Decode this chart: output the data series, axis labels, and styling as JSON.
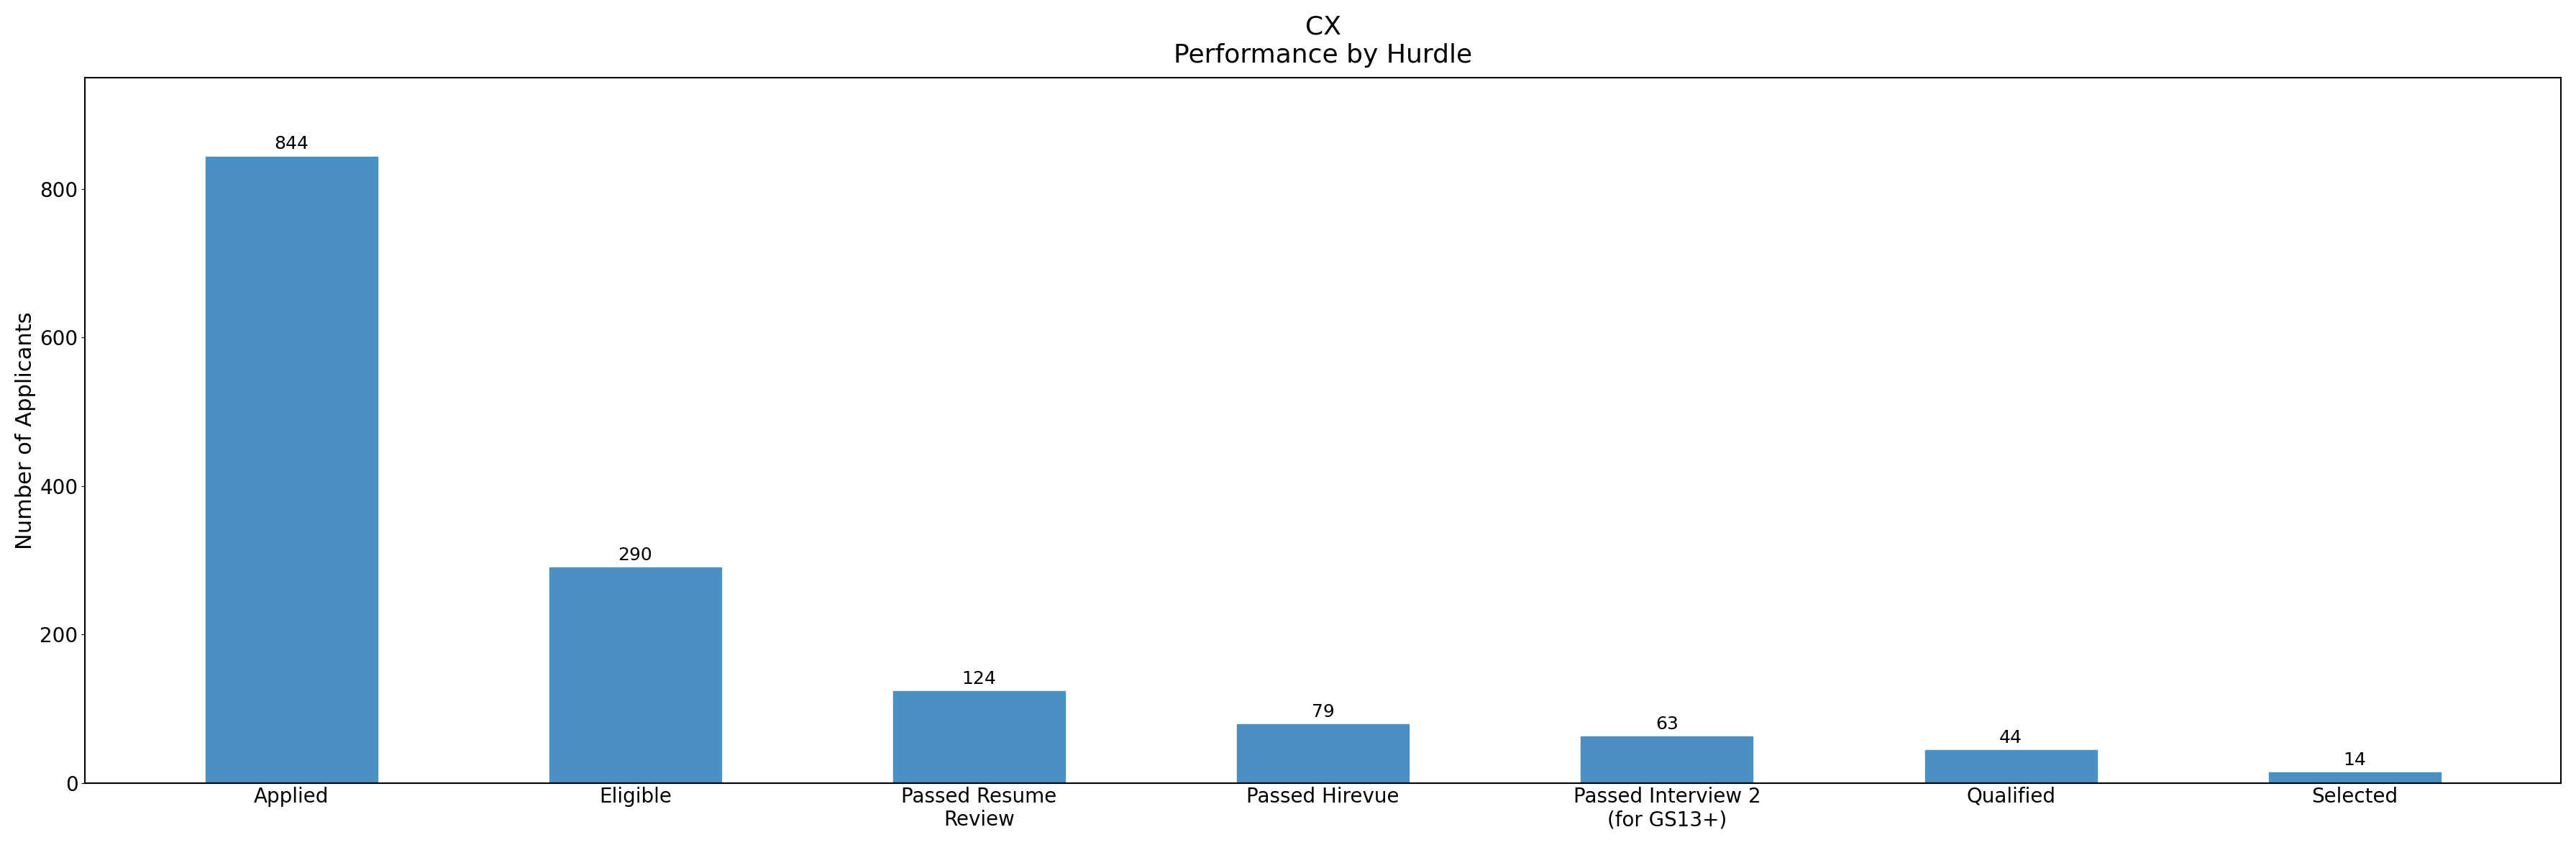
{
  "title_line1": "CX",
  "title_line2": "Performance by Hurdle",
  "categories": [
    "Applied",
    "Eligible",
    "Passed Resume\nReview",
    "Passed Hirevue",
    "Passed Interview 2\n(for GS13+)",
    "Qualified",
    "Selected"
  ],
  "values": [
    844,
    290,
    124,
    79,
    63,
    44,
    14
  ],
  "bar_color": "#4A90C4",
  "ylabel": "Number of Applicants",
  "ylim": [
    0,
    950
  ],
  "yticks": [
    0,
    200,
    400,
    600,
    800
  ],
  "title_fontsize": 26,
  "label_fontsize": 22,
  "tick_fontsize": 20,
  "bar_label_fontsize": 18,
  "background_color": "#ffffff"
}
